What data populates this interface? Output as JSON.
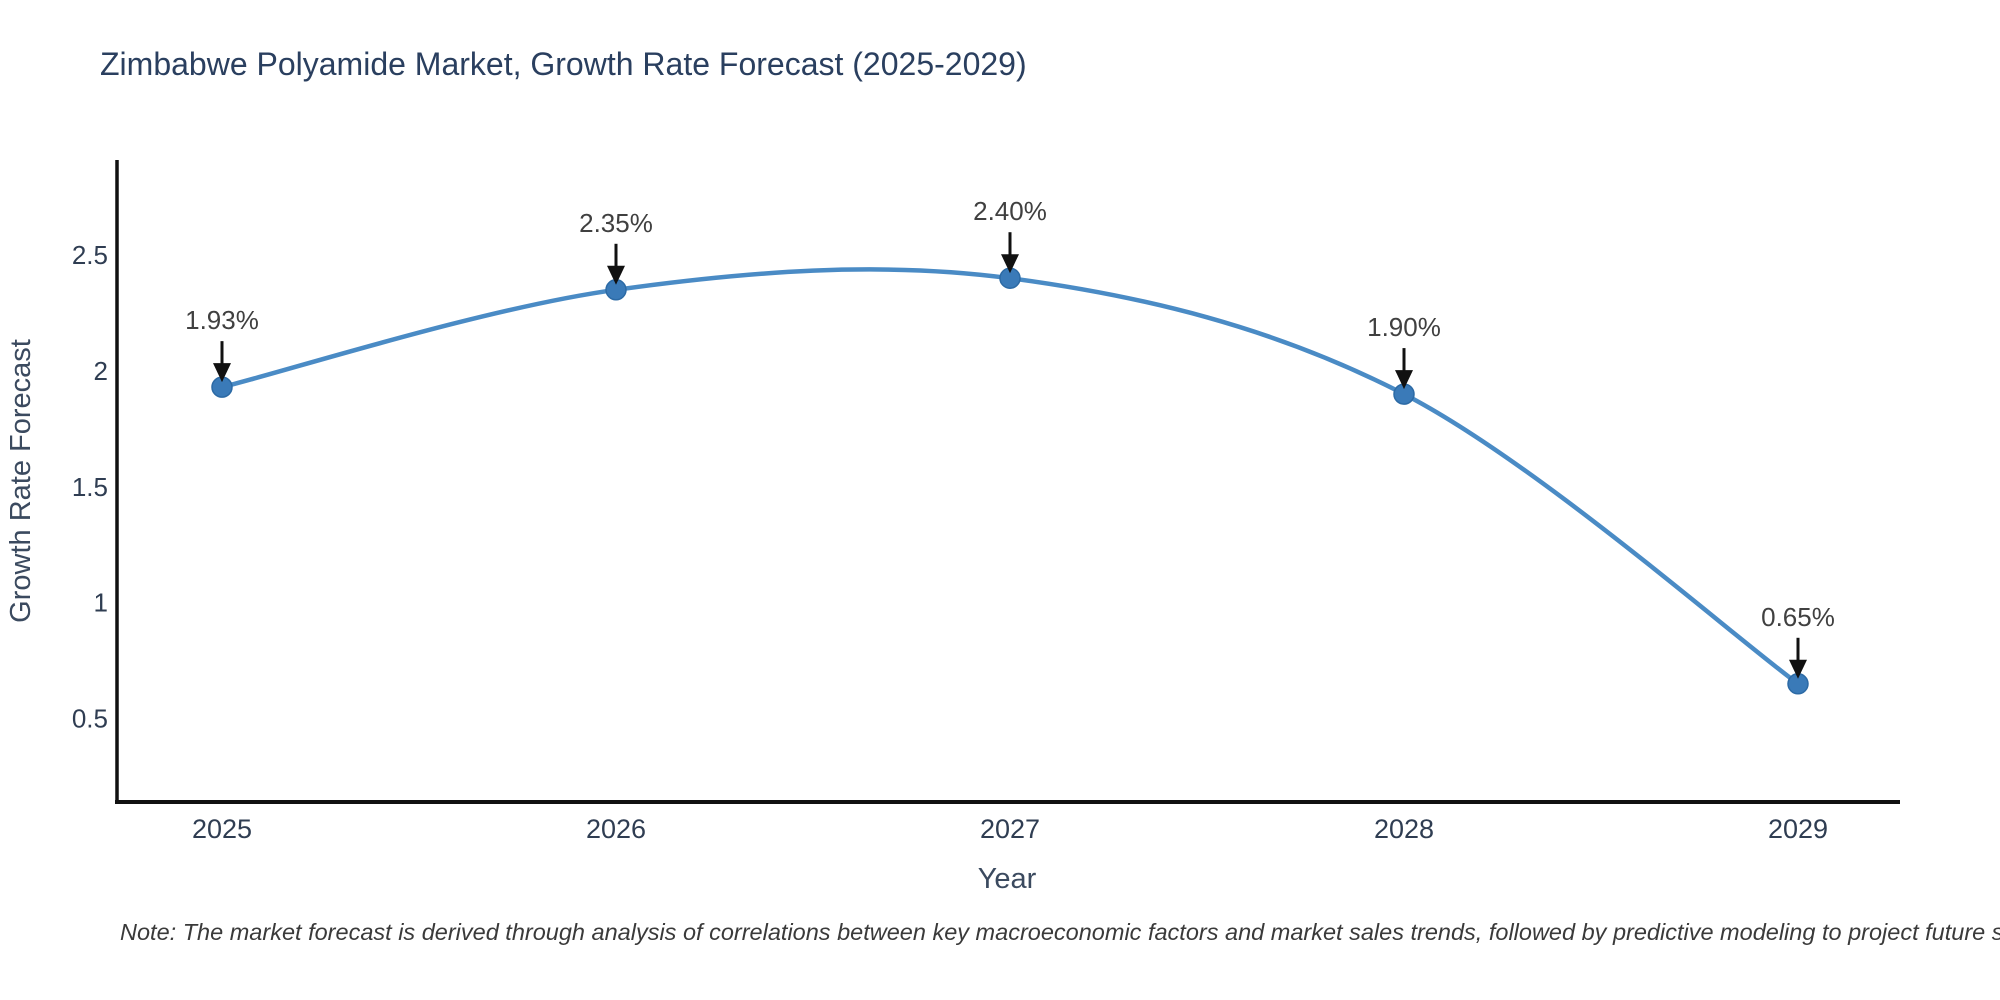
{
  "title": "Zimbabwe Polyamide Market, Growth Rate Forecast (2025-2029)",
  "note": "Note: The market forecast is derived through analysis of correlations between key macroeconomic factors and market sales trends, followed by predictive modeling to project future sales",
  "chart_data": {
    "type": "line",
    "title": "Zimbabwe Polyamide Market, Growth Rate Forecast (2025-2029)",
    "xlabel": "Year",
    "ylabel": "Growth Rate Forecast",
    "categories": [
      "2025",
      "2026",
      "2027",
      "2028",
      "2029"
    ],
    "series": [
      {
        "name": "Growth Rate Forecast",
        "values": [
          1.93,
          2.35,
          2.4,
          1.9,
          0.65
        ],
        "point_labels": [
          "1.93%",
          "2.35%",
          "2.40%",
          "1.90%",
          "0.65%"
        ]
      }
    ],
    "line_shape": "spline",
    "markers": true,
    "grid": false,
    "legend_position": "none",
    "y_ticks": [
      0.5,
      1,
      1.5,
      2,
      2.5
    ],
    "y_tick_labels": [
      "0.5",
      "1",
      "1.5",
      "2",
      "2.5"
    ],
    "ylim": [
      0.14,
      2.91
    ],
    "colors": {
      "line": "#4a8bc5",
      "marker_fill": "#3a7ab8",
      "marker_stroke": "#2c6aa5",
      "axis_line": "#111111",
      "title_text": "#2a3f5f",
      "tick_text": "#2f3d52",
      "axis_title_text": "#3b4a5f",
      "annotation_text": "#404040",
      "arrow": "#111111",
      "note_text": "#3a3a3a",
      "background": "#ffffff"
    }
  }
}
